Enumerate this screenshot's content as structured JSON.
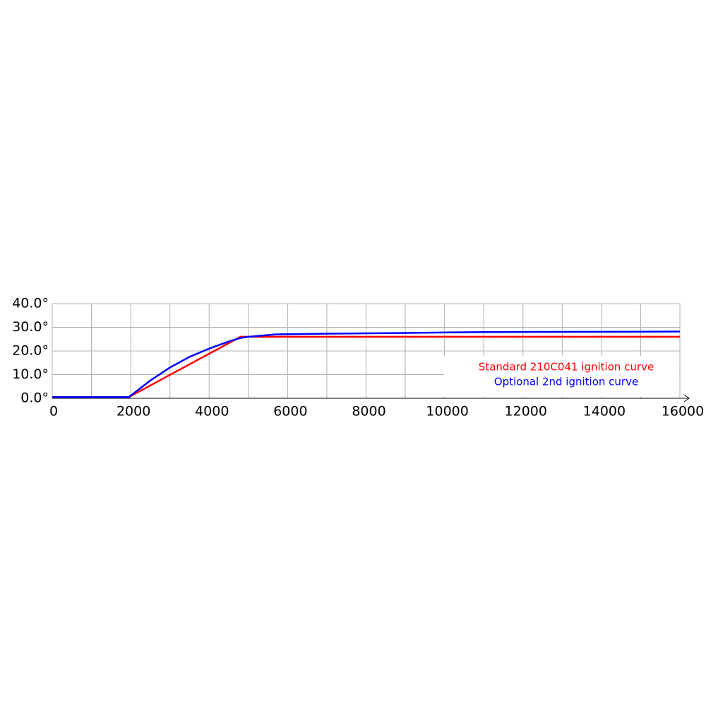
{
  "chart_data": {
    "type": "line",
    "xlim": [
      0,
      16000
    ],
    "ylim": [
      0,
      40
    ],
    "xticks": [
      0,
      2000,
      4000,
      6000,
      8000,
      10000,
      12000,
      14000,
      16000
    ],
    "xgrid": [
      1000,
      2000,
      3000,
      4000,
      5000,
      6000,
      7000,
      8000,
      9000,
      10000,
      11000,
      12000,
      13000,
      14000,
      15000,
      16000
    ],
    "yticks": [
      {
        "value": 0,
        "label": "0.0°"
      },
      {
        "value": 10,
        "label": "10.0°"
      },
      {
        "value": 20,
        "label": "20.0°"
      },
      {
        "value": 30,
        "label": "30.0°"
      },
      {
        "value": 40,
        "label": "40.0°"
      }
    ],
    "grid": true,
    "legend": "lower right",
    "series": [
      {
        "name": "Standard 210C041 ignition curve",
        "color": "#ff0000",
        "x": [
          0,
          1950,
          4800,
          16000
        ],
        "values": [
          0.5,
          0.5,
          26,
          26
        ]
      },
      {
        "name": "Optional 2nd ignition curve",
        "color": "#0000ff",
        "x": [
          0,
          1950,
          2500,
          3000,
          3500,
          4000,
          4500,
          4800,
          5000,
          5700,
          7000,
          9000,
          11000,
          16000
        ],
        "values": [
          0.5,
          0.5,
          7.5,
          13,
          17.5,
          21,
          24,
          25.5,
          26,
          27,
          27.3,
          27.6,
          28,
          28.2
        ]
      }
    ]
  }
}
